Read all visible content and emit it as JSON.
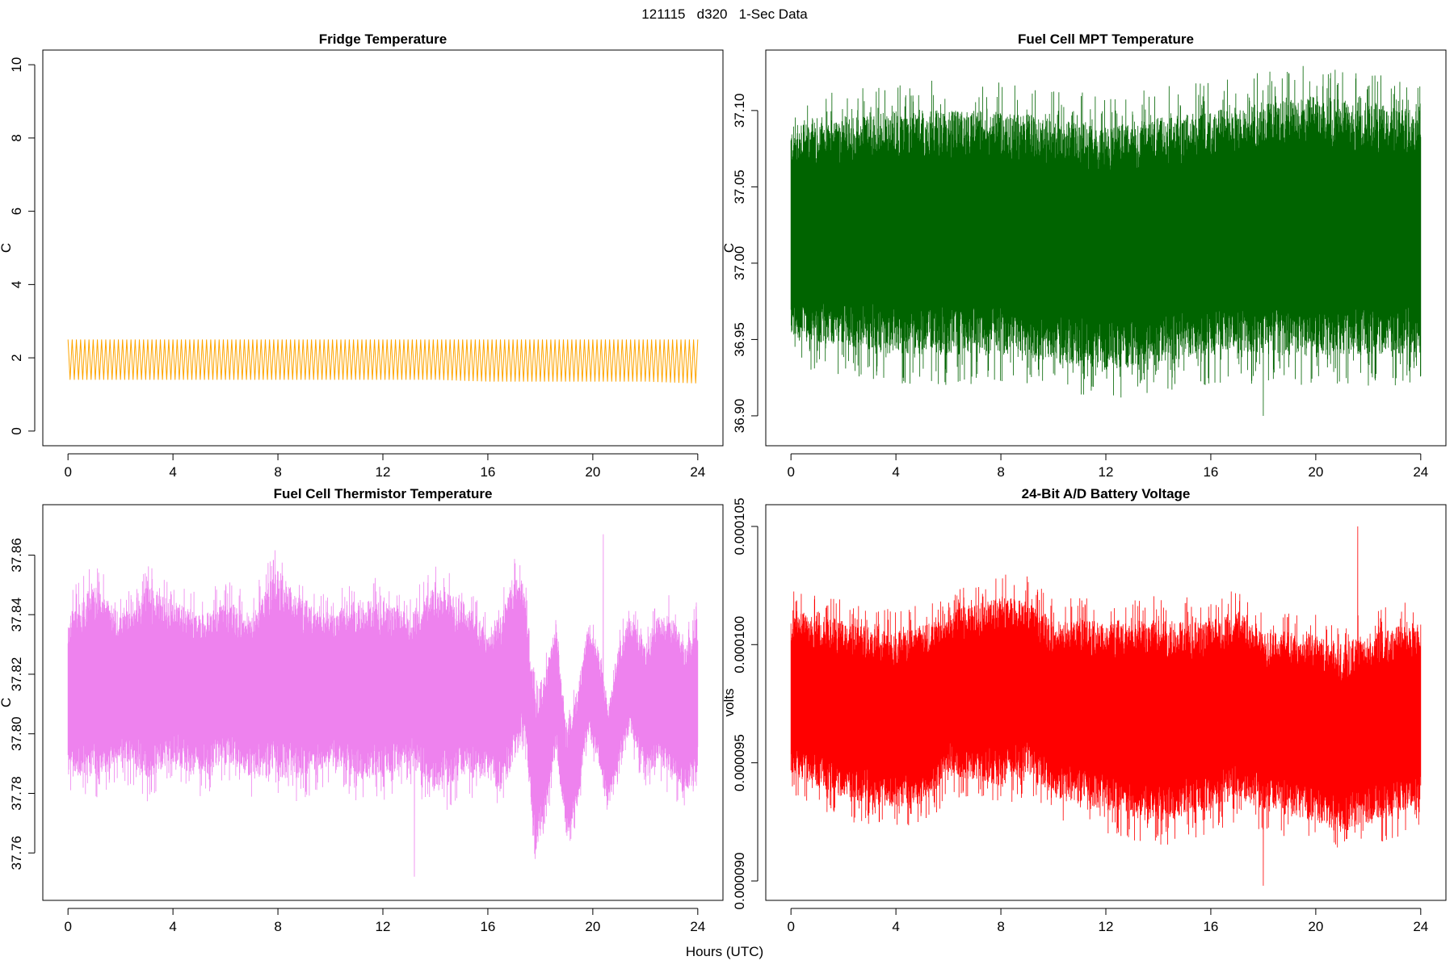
{
  "figure": {
    "title": "121115   d320   1-Sec Data",
    "xlabel": "Hours (UTC)"
  },
  "chart_data": [
    {
      "type": "line",
      "title": "Fridge Temperature",
      "xlabel": "Hours (UTC)",
      "ylabel": "C",
      "xlim": [
        0,
        24
      ],
      "ylim": [
        0,
        10
      ],
      "xticks": [
        0,
        4,
        8,
        12,
        16,
        20,
        24
      ],
      "xtick_labels": [
        "0",
        "4",
        "8",
        "12",
        "16",
        "20",
        "24"
      ],
      "yticks": [
        0,
        2,
        4,
        6,
        8,
        10
      ],
      "ytick_labels": [
        "0",
        "2",
        "4",
        "6",
        "8",
        "10"
      ],
      "color": "#FFA500",
      "grid": false,
      "series": [
        {
          "style": "oscillation",
          "x_start": 0,
          "x_end": 24,
          "period_hours": 0.16,
          "x": [
            0,
            2,
            4,
            6,
            8,
            10,
            12,
            14,
            16,
            18,
            20,
            22,
            24
          ],
          "upper": [
            2.5,
            2.5,
            2.5,
            2.5,
            2.5,
            2.5,
            2.5,
            2.5,
            2.5,
            2.5,
            2.5,
            2.5,
            2.5
          ],
          "lower": [
            1.4,
            1.4,
            1.4,
            1.4,
            1.4,
            1.4,
            1.4,
            1.4,
            1.35,
            1.35,
            1.35,
            1.35,
            1.3
          ]
        }
      ]
    },
    {
      "type": "line",
      "title": "Fuel Cell MPT Temperature",
      "xlabel": "Hours (UTC)",
      "ylabel": "C",
      "xlim": [
        0,
        24
      ],
      "ylim": [
        36.89,
        37.13
      ],
      "xticks": [
        0,
        4,
        8,
        12,
        16,
        20,
        24
      ],
      "xtick_labels": [
        "0",
        "4",
        "8",
        "12",
        "16",
        "20",
        "24"
      ],
      "yticks": [
        36.9,
        36.95,
        37.0,
        37.05,
        37.1
      ],
      "ytick_labels": [
        "36.90",
        "36.95",
        "37.00",
        "37.05",
        "37.10"
      ],
      "color": "#006400",
      "grid": false,
      "series": [
        {
          "style": "noise-band",
          "x": [
            0,
            4,
            8,
            12,
            16,
            20,
            24
          ],
          "center": [
            37.02,
            37.02,
            37.02,
            37.02,
            37.02,
            37.02,
            37.02
          ],
          "core_upper": [
            37.05,
            37.05,
            37.05,
            37.05,
            37.05,
            37.05,
            37.05
          ],
          "core_lower": [
            36.99,
            36.99,
            36.99,
            36.99,
            36.99,
            36.99,
            36.99
          ],
          "upper": [
            37.09,
            37.1,
            37.1,
            37.09,
            37.1,
            37.11,
            37.1
          ],
          "lower": [
            36.95,
            36.94,
            36.94,
            36.93,
            36.94,
            36.94,
            36.94
          ],
          "max": 37.12,
          "min": 36.9
        }
      ]
    },
    {
      "type": "line",
      "title": "Fuel Cell Thermistor Temperature",
      "xlabel": "Hours (UTC)",
      "ylabel": "C",
      "xlim": [
        0,
        24
      ],
      "ylim": [
        37.749,
        37.872
      ],
      "xticks": [
        0,
        4,
        8,
        12,
        16,
        20,
        24
      ],
      "xtick_labels": [
        "0",
        "4",
        "8",
        "12",
        "16",
        "20",
        "24"
      ],
      "yticks": [
        37.76,
        37.78,
        37.8,
        37.82,
        37.84,
        37.86
      ],
      "ytick_labels": [
        "37.76",
        "37.78",
        "37.80",
        "37.82",
        "37.84",
        "37.86"
      ],
      "color": "#EE82EE",
      "grid": false,
      "series": [
        {
          "style": "noise-band",
          "x": [
            0,
            1,
            2,
            3,
            4,
            5,
            6,
            7,
            8,
            9,
            10,
            11,
            12,
            13,
            14,
            15,
            16,
            16.5,
            17,
            17.4,
            17.8,
            18.2,
            18.6,
            19,
            19.4,
            19.8,
            20.2,
            20.6,
            21,
            21.4,
            22,
            22.5,
            23,
            23.5,
            24
          ],
          "upper": [
            37.84,
            37.85,
            37.84,
            37.85,
            37.845,
            37.84,
            37.845,
            37.84,
            37.855,
            37.845,
            37.84,
            37.845,
            37.845,
            37.84,
            37.85,
            37.845,
            37.835,
            37.84,
            37.855,
            37.85,
            37.815,
            37.82,
            37.84,
            37.8,
            37.815,
            37.835,
            37.83,
            37.81,
            37.83,
            37.84,
            37.83,
            37.84,
            37.84,
            37.83,
            37.84
          ],
          "lower": [
            37.785,
            37.785,
            37.79,
            37.785,
            37.79,
            37.785,
            37.79,
            37.785,
            37.785,
            37.785,
            37.79,
            37.785,
            37.785,
            37.79,
            37.78,
            37.785,
            37.785,
            37.78,
            37.79,
            37.8,
            37.76,
            37.77,
            37.795,
            37.765,
            37.775,
            37.8,
            37.79,
            37.775,
            37.79,
            37.8,
            37.785,
            37.79,
            37.785,
            37.78,
            37.785
          ],
          "max": 37.867,
          "min": 37.752
        }
      ]
    },
    {
      "type": "line",
      "title": "24-Bit A/D Battery Voltage",
      "xlabel": "Hours (UTC)",
      "ylabel": "volts",
      "xlim": [
        0,
        24
      ],
      "ylim": [
        8.98e-05,
        0.0001053
      ],
      "xticks": [
        0,
        4,
        8,
        12,
        16,
        20,
        24
      ],
      "xtick_labels": [
        "0",
        "4",
        "8",
        "12",
        "16",
        "20",
        "24"
      ],
      "yticks": [
        9e-05,
        9.5e-05,
        0.0001,
        0.000105
      ],
      "ytick_labels": [
        "0.000090",
        "0.000095",
        "0.000100",
        "0.000105"
      ],
      "color": "#FF0000",
      "grid": false,
      "series": [
        {
          "style": "noise-band",
          "x": [
            0,
            2,
            4,
            5.5,
            6,
            8,
            9,
            10,
            12,
            14,
            16,
            17,
            18,
            20,
            21,
            22,
            24
          ],
          "upper": [
            0.0001015,
            0.000101,
            0.0001005,
            0.000101,
            0.0001015,
            0.000102,
            0.000102,
            0.000101,
            0.000101,
            0.000101,
            0.000101,
            0.0001015,
            0.0001005,
            0.0001005,
            0.0001,
            0.0001005,
            0.000101
          ],
          "lower": [
            9.45e-05,
            9.35e-05,
            9.3e-05,
            9.35e-05,
            9.45e-05,
            9.4e-05,
            9.45e-05,
            9.35e-05,
            9.3e-05,
            9.25e-05,
            9.3e-05,
            9.35e-05,
            9.3e-05,
            9.25e-05,
            9.2e-05,
            9.25e-05,
            9.3e-05
          ],
          "max": 0.000105,
          "min": 8.98e-05
        }
      ]
    }
  ]
}
